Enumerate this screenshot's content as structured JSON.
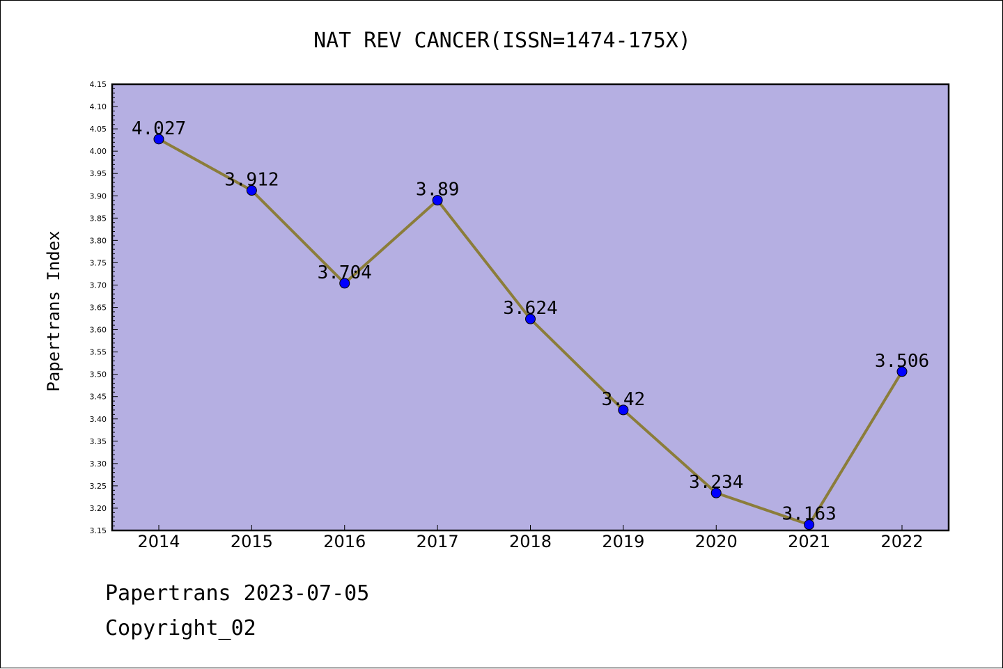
{
  "chart_data": {
    "type": "line",
    "title": "NAT REV CANCER(ISSN=1474-175X)",
    "ylabel": "Papertrans Index",
    "xlabel": "",
    "categories": [
      "2014",
      "2015",
      "2016",
      "2017",
      "2018",
      "2019",
      "2020",
      "2021",
      "2022"
    ],
    "values": [
      4.027,
      3.912,
      3.704,
      3.89,
      3.624,
      3.42,
      3.234,
      3.163,
      3.506
    ],
    "data_labels": [
      "4.027",
      "3.912",
      "3.704",
      "3.89",
      "3.624",
      "3.42",
      "3.234",
      "3.163",
      "3.506"
    ],
    "ylim": [
      3.15,
      4.15
    ],
    "yticks": [
      "3.15",
      "3.20",
      "3.25",
      "3.30",
      "3.35",
      "3.40",
      "3.45",
      "3.50",
      "3.55",
      "3.60",
      "3.65",
      "3.70",
      "3.75",
      "3.80",
      "3.85",
      "3.90",
      "3.95",
      "4.00",
      "4.05",
      "4.10",
      "4.15"
    ],
    "grid": false,
    "legend": "none",
    "colors": {
      "plot_background": "#b5afe2",
      "line": "#8b7d3a",
      "marker": "#0000ff"
    }
  },
  "footer": {
    "date_line": "Papertrans 2023-07-05",
    "copyright": "Copyright_02"
  }
}
